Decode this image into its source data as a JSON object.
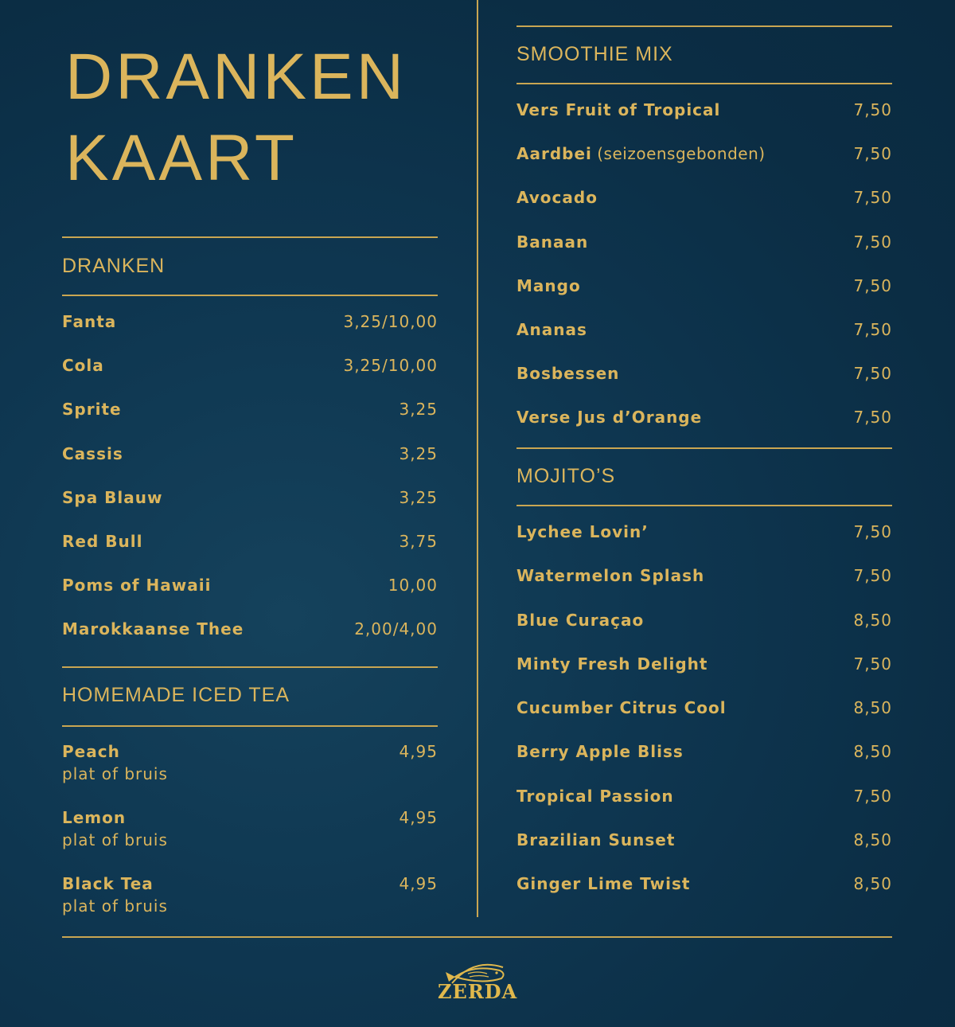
{
  "title": {
    "line1": "DRANKEN",
    "line2": "KAART"
  },
  "colors": {
    "background": "#0d3048",
    "accent": "#dbb55c"
  },
  "sections": {
    "dranken": {
      "heading": "DRANKEN",
      "items": [
        {
          "name": "Fanta",
          "price": "3,25/10,00"
        },
        {
          "name": "Cola",
          "price": "3,25/10,00"
        },
        {
          "name": "Sprite",
          "price": "3,25"
        },
        {
          "name": "Cassis",
          "price": "3,25"
        },
        {
          "name": "Spa Blauw",
          "price": "3,25"
        },
        {
          "name": "Red Bull",
          "price": "3,75"
        },
        {
          "name": "Poms of Hawaii",
          "price": "10,00"
        },
        {
          "name": "Marokkaanse Thee",
          "price": "2,00/4,00"
        }
      ]
    },
    "iced_tea": {
      "heading": "HOMEMADE ICED TEA",
      "items": [
        {
          "name": "Peach",
          "sub": "plat of bruis",
          "price": "4,95"
        },
        {
          "name": "Lemon",
          "sub": "plat of bruis",
          "price": "4,95"
        },
        {
          "name": "Black Tea",
          "sub": "plat of bruis",
          "price": "4,95"
        }
      ]
    },
    "smoothie": {
      "heading": "SMOOTHIE MIX",
      "items": [
        {
          "name": "Vers Fruit of Tropical",
          "price": "7,50"
        },
        {
          "name": "Aardbei",
          "note": "(seizoensgebonden)",
          "price": "7,50"
        },
        {
          "name": "Avocado",
          "price": "7,50"
        },
        {
          "name": "Banaan",
          "price": "7,50"
        },
        {
          "name": "Mango",
          "price": "7,50"
        },
        {
          "name": "Ananas",
          "price": "7,50"
        },
        {
          "name": "Bosbessen",
          "price": "7,50"
        },
        {
          "name": "Verse Jus d’Orange",
          "price": "7,50"
        }
      ]
    },
    "mojitos": {
      "heading": "MOJITO’S",
      "items": [
        {
          "name": "Lychee Lovin’",
          "price": "7,50"
        },
        {
          "name": "Watermelon Splash",
          "price": "7,50"
        },
        {
          "name": "Blue Curaçao",
          "price": "8,50"
        },
        {
          "name": "Minty Fresh Delight",
          "price": "7,50"
        },
        {
          "name": "Cucumber Citrus Cool",
          "price": "8,50"
        },
        {
          "name": "Berry Apple Bliss",
          "price": "8,50"
        },
        {
          "name": "Tropical Passion",
          "price": "7,50"
        },
        {
          "name": "Brazilian Sunset",
          "price": "8,50"
        },
        {
          "name": "Ginger Lime Twist",
          "price": "8,50"
        }
      ]
    }
  },
  "logo": {
    "text": "ZERDA",
    "icon": "fish-icon"
  }
}
